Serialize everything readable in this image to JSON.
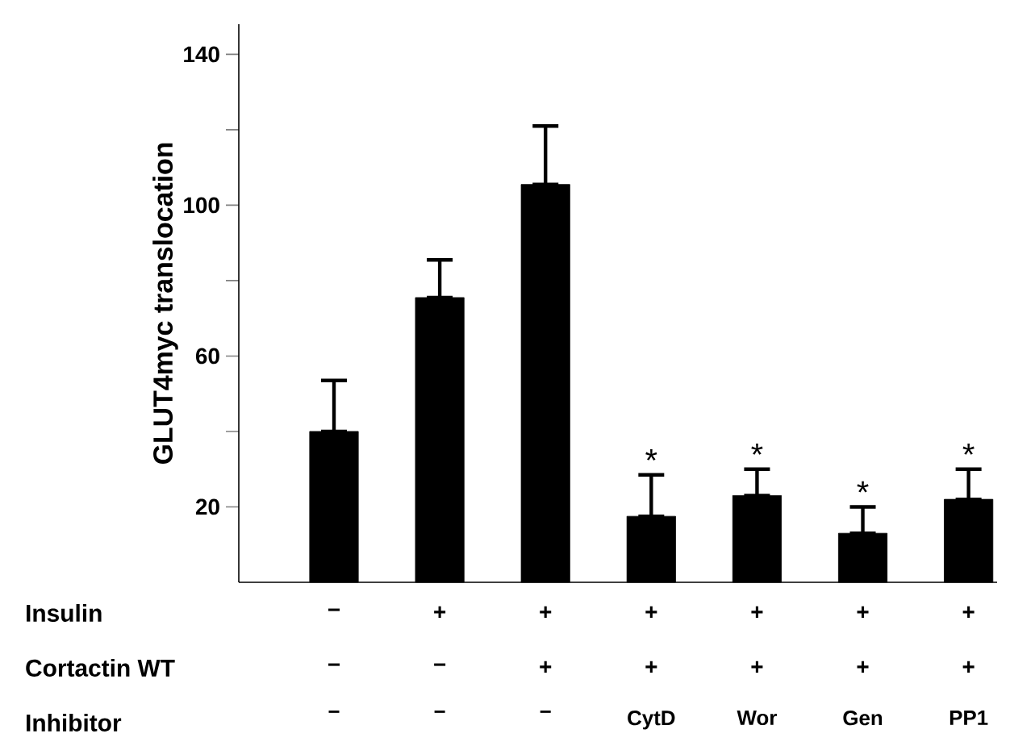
{
  "chart_data": {
    "type": "bar",
    "ylabel": "GLUT4myc translocation",
    "categories": [
      "−",
      "−",
      "−",
      "CytD",
      "Wor",
      "Gen",
      "PP1"
    ],
    "values": [
      40,
      75.5,
      105.5,
      17.5,
      23,
      13,
      22
    ],
    "errors": [
      [
        40,
        53.5
      ],
      [
        75.5,
        85.5
      ],
      [
        105.5,
        121
      ],
      [
        17.5,
        28.5
      ],
      [
        23,
        30
      ],
      [
        13,
        20
      ],
      [
        22,
        30
      ]
    ],
    "color": "#000000",
    "ylim": [
      0,
      148
    ],
    "yticks": [
      20,
      {
        "value": 40,
        "label": null
      },
      60,
      {
        "value": 80,
        "label": null
      },
      100,
      {
        "value": 120,
        "label": null
      },
      140
    ],
    "grid": false,
    "annotations": [
      "Insulin",
      "Cortactin WT",
      "Inhibitor",
      "−",
      "+",
      "+",
      "+",
      "+",
      "+",
      "+",
      "−",
      "−",
      "+",
      "+",
      "+",
      "+",
      "+",
      {
        "text": "*",
        "x": "CytD",
        "y": 28.5
      },
      {
        "text": "*",
        "x": "Wor",
        "y": 30
      },
      {
        "text": "*",
        "x": "Gen",
        "y": 20
      },
      {
        "text": "*",
        "x": "PP1",
        "y": 30
      }
    ]
  }
}
